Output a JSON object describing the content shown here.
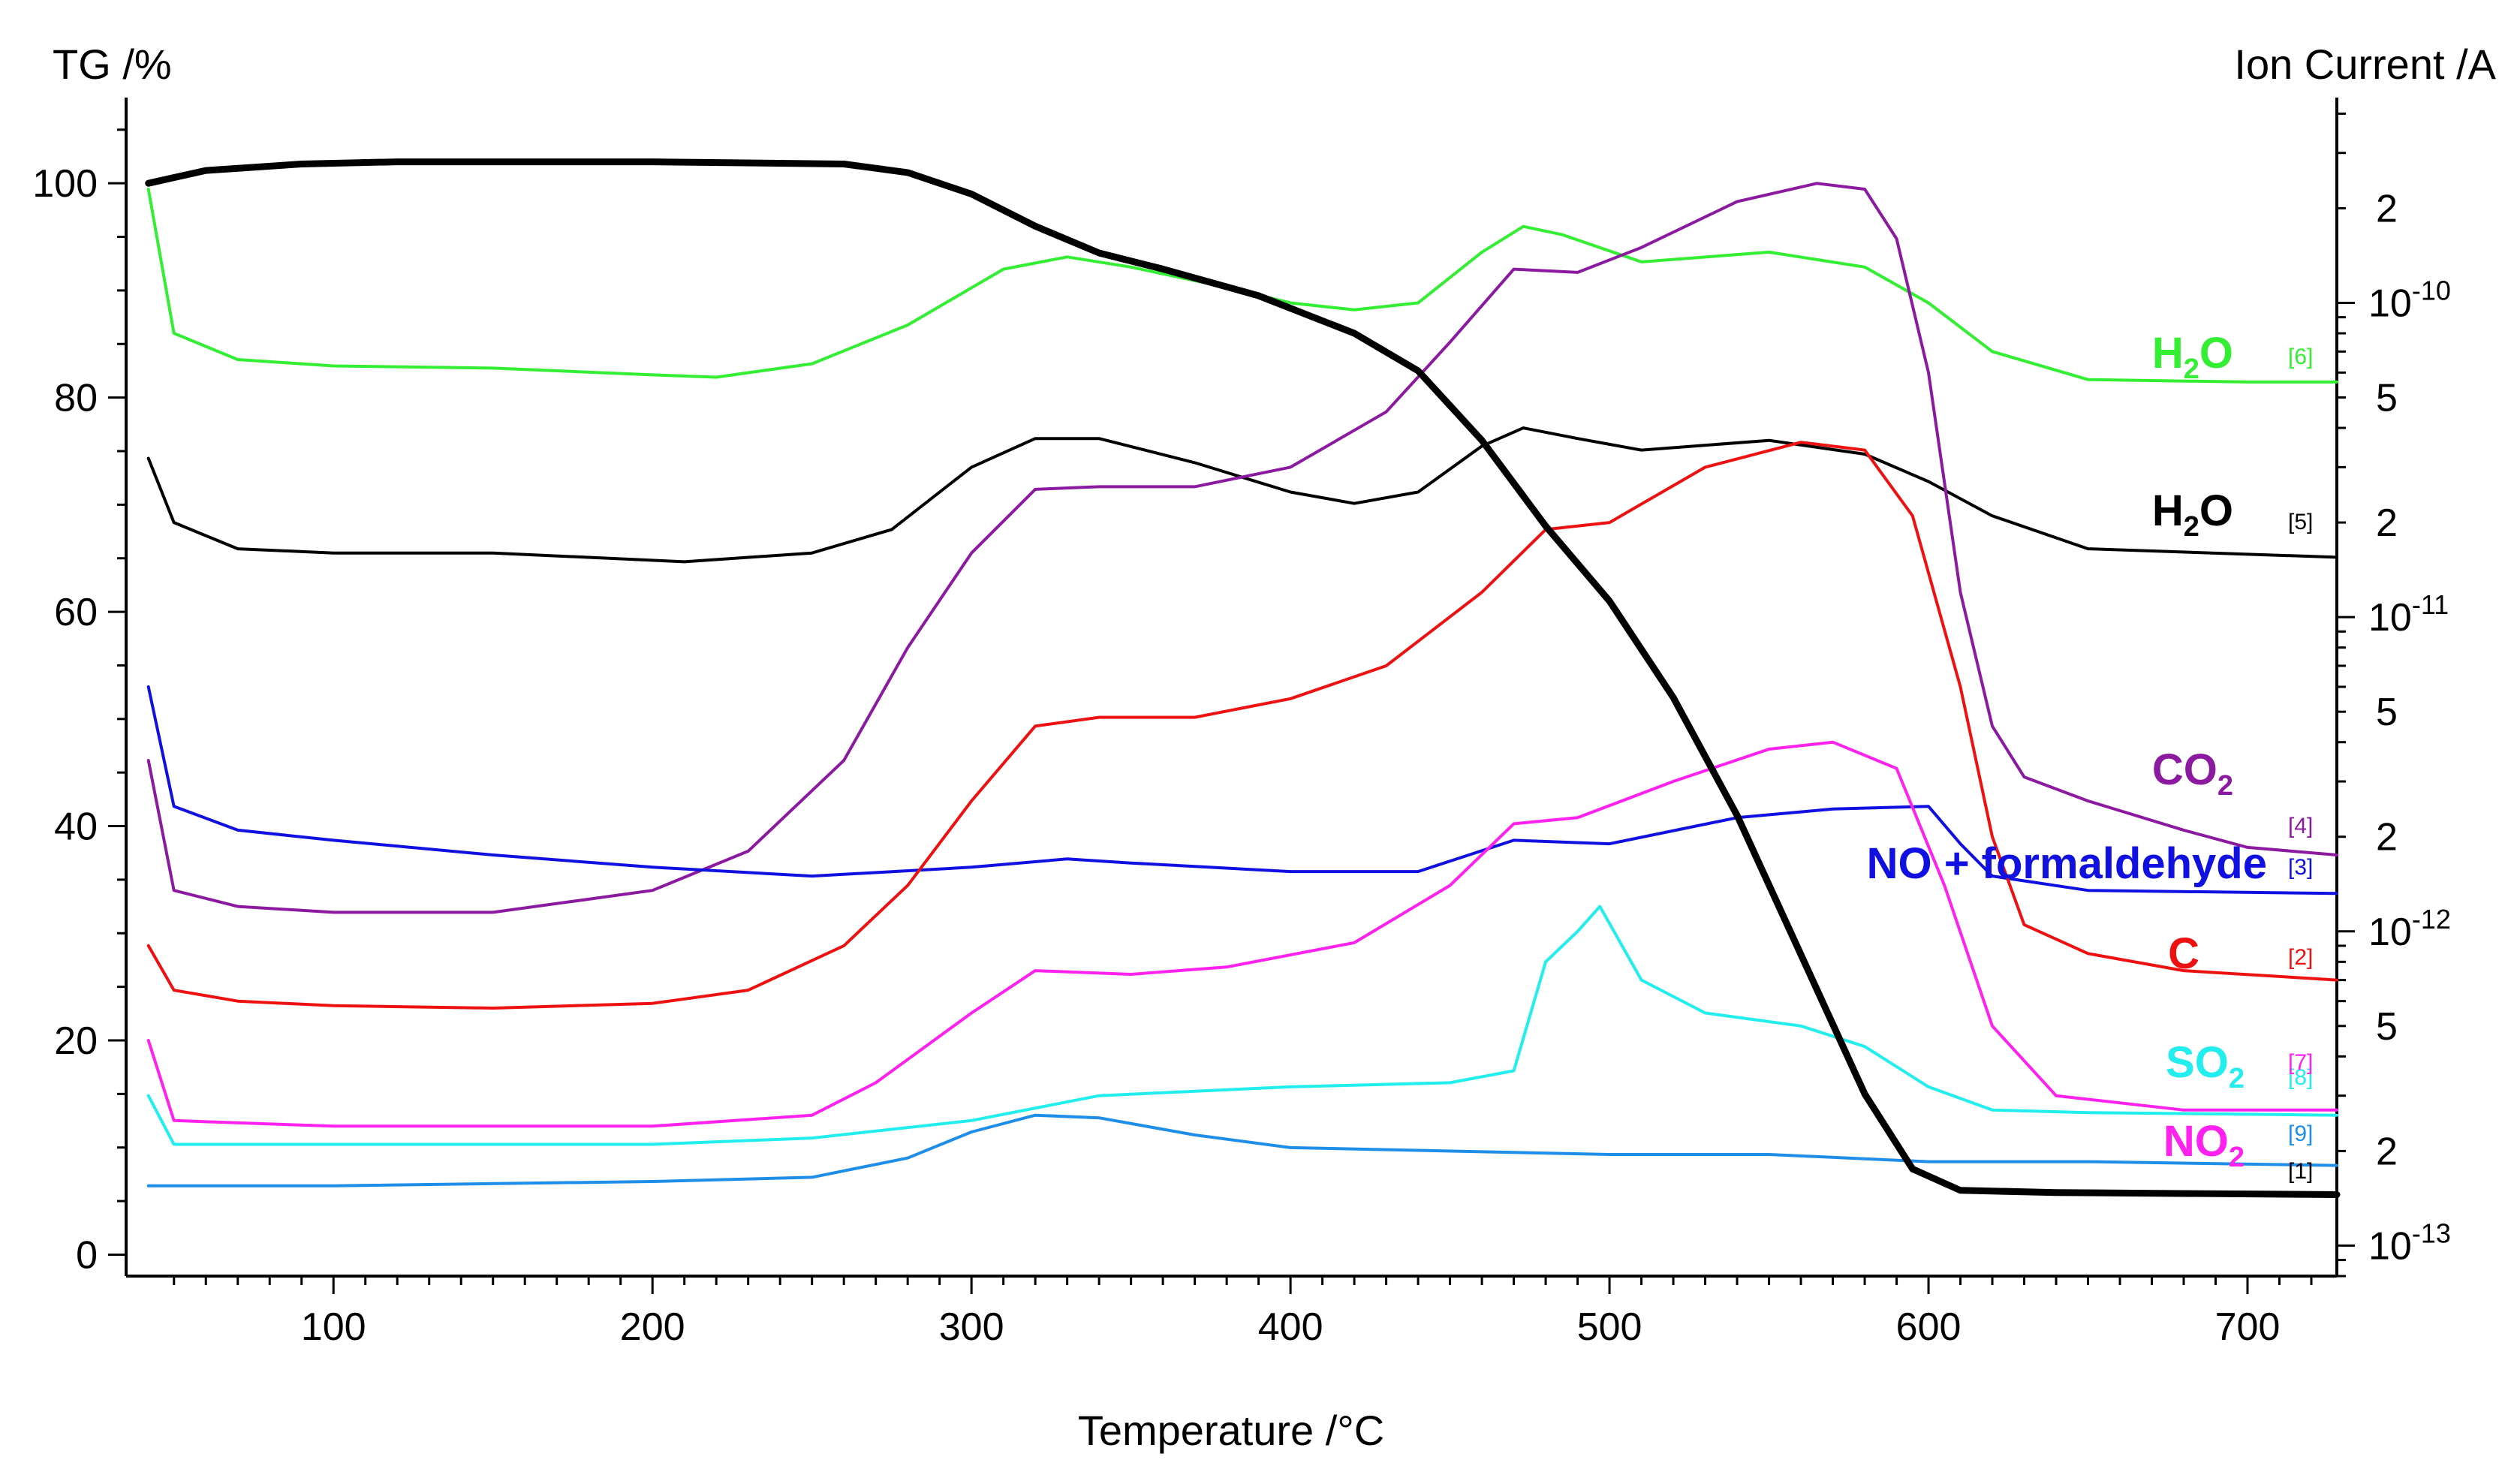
{
  "chart_data": {
    "type": "line",
    "title": "",
    "xlabel": "Temperature /°C",
    "ylabel_left": "TG /%",
    "ylabel_right": "Ion Current /A",
    "xlim": [
      35,
      728
    ],
    "ylim_left": [
      -2,
      108
    ],
    "right_axis": {
      "scale": "log",
      "ylim": [
        8e-14,
        4.5e-10
      ],
      "major_ticks": [
        {
          "value": 1e-13,
          "base": "10",
          "exp": "-13"
        },
        {
          "value": 1e-12,
          "base": "10",
          "exp": "-12"
        },
        {
          "value": 1e-11,
          "base": "10",
          "exp": "-11"
        },
        {
          "value": 1e-10,
          "base": "10",
          "exp": "-10"
        }
      ],
      "minor_labeled_ticks": [
        {
          "value": 2e-13,
          "label": "2"
        },
        {
          "value": 5e-13,
          "label": "5"
        },
        {
          "value": 2e-12,
          "label": "2"
        },
        {
          "value": 5e-12,
          "label": "5"
        },
        {
          "value": 2e-11,
          "label": "2"
        },
        {
          "value": 5e-11,
          "label": "5"
        },
        {
          "value": 2e-10,
          "label": "2"
        }
      ]
    },
    "x_ticks": [
      100,
      200,
      300,
      400,
      500,
      600,
      700
    ],
    "y_ticks_left": [
      0,
      20,
      40,
      60,
      80,
      100
    ],
    "series": [
      {
        "name": "TG",
        "axis": "left",
        "color": "#000000",
        "thick": true,
        "points": [
          [
            42,
            100
          ],
          [
            60,
            101.2
          ],
          [
            90,
            101.8
          ],
          [
            120,
            102
          ],
          [
            200,
            102
          ],
          [
            260,
            101.8
          ],
          [
            280,
            101
          ],
          [
            300,
            99
          ],
          [
            320,
            96
          ],
          [
            340,
            93.5
          ],
          [
            360,
            92
          ],
          [
            390,
            89.5
          ],
          [
            420,
            86
          ],
          [
            440,
            82.5
          ],
          [
            460,
            76
          ],
          [
            480,
            68
          ],
          [
            500,
            61
          ],
          [
            520,
            52
          ],
          [
            540,
            41
          ],
          [
            560,
            28
          ],
          [
            580,
            15
          ],
          [
            595,
            8
          ],
          [
            610,
            6
          ],
          [
            640,
            5.8
          ],
          [
            728,
            5.6
          ]
        ]
      },
      {
        "name": "H2O",
        "index": "[6]",
        "label_parts": [
          "H",
          "2",
          "O"
        ],
        "axis": "right",
        "color": "#33ee33",
        "points": [
          [
            42,
            2.3e-10
          ],
          [
            50,
            8e-11
          ],
          [
            70,
            6.6e-11
          ],
          [
            100,
            6.3e-11
          ],
          [
            150,
            6.2e-11
          ],
          [
            200,
            5.9e-11
          ],
          [
            220,
            5.8e-11
          ],
          [
            250,
            6.4e-11
          ],
          [
            280,
            8.5e-11
          ],
          [
            310,
            1.28e-10
          ],
          [
            330,
            1.4e-10
          ],
          [
            350,
            1.3e-10
          ],
          [
            380,
            1.12e-10
          ],
          [
            400,
            1e-10
          ],
          [
            420,
            9.5e-11
          ],
          [
            440,
            1e-10
          ],
          [
            460,
            1.45e-10
          ],
          [
            473,
            1.75e-10
          ],
          [
            485,
            1.65e-10
          ],
          [
            510,
            1.35e-10
          ],
          [
            550,
            1.45e-10
          ],
          [
            580,
            1.3e-10
          ],
          [
            600,
            1e-10
          ],
          [
            620,
            7e-11
          ],
          [
            650,
            5.7e-11
          ],
          [
            700,
            5.6e-11
          ],
          [
            728,
            5.6e-11
          ]
        ]
      },
      {
        "name": "H2O",
        "index": "[5]",
        "label_parts": [
          "H",
          "2",
          "O"
        ],
        "axis": "right",
        "color": "#000000",
        "points": [
          [
            42,
            3.2e-11
          ],
          [
            50,
            2e-11
          ],
          [
            70,
            1.65e-11
          ],
          [
            100,
            1.6e-11
          ],
          [
            150,
            1.6e-11
          ],
          [
            210,
            1.5e-11
          ],
          [
            250,
            1.6e-11
          ],
          [
            275,
            1.9e-11
          ],
          [
            300,
            3e-11
          ],
          [
            320,
            3.7e-11
          ],
          [
            340,
            3.7e-11
          ],
          [
            370,
            3.1e-11
          ],
          [
            400,
            2.5e-11
          ],
          [
            420,
            2.3e-11
          ],
          [
            440,
            2.5e-11
          ],
          [
            460,
            3.5e-11
          ],
          [
            473,
            4e-11
          ],
          [
            490,
            3.7e-11
          ],
          [
            510,
            3.4e-11
          ],
          [
            550,
            3.65e-11
          ],
          [
            580,
            3.3e-11
          ],
          [
            600,
            2.7e-11
          ],
          [
            620,
            2.1e-11
          ],
          [
            650,
            1.65e-11
          ],
          [
            728,
            1.55e-11
          ]
        ]
      },
      {
        "name": "CO2",
        "index": "[4]",
        "label_parts": [
          "CO",
          "2",
          ""
        ],
        "axis": "right",
        "color": "#8b1aa0",
        "points": [
          [
            42,
            3.5e-12
          ],
          [
            50,
            1.35e-12
          ],
          [
            70,
            1.2e-12
          ],
          [
            100,
            1.15e-12
          ],
          [
            150,
            1.15e-12
          ],
          [
            200,
            1.35e-12
          ],
          [
            230,
            1.8e-12
          ],
          [
            260,
            3.5e-12
          ],
          [
            280,
            8e-12
          ],
          [
            300,
            1.6e-11
          ],
          [
            320,
            2.55e-11
          ],
          [
            340,
            2.6e-11
          ],
          [
            370,
            2.6e-11
          ],
          [
            400,
            3e-11
          ],
          [
            430,
            4.5e-11
          ],
          [
            450,
            7.5e-11
          ],
          [
            470,
            1.28e-10
          ],
          [
            490,
            1.25e-10
          ],
          [
            510,
            1.5e-10
          ],
          [
            540,
            2.1e-10
          ],
          [
            565,
            2.4e-10
          ],
          [
            580,
            2.3e-10
          ],
          [
            590,
            1.6e-10
          ],
          [
            600,
            6e-11
          ],
          [
            610,
            1.2e-11
          ],
          [
            620,
            4.5e-12
          ],
          [
            630,
            3.1e-12
          ],
          [
            650,
            2.6e-12
          ],
          [
            680,
            2.1e-12
          ],
          [
            700,
            1.85e-12
          ],
          [
            728,
            1.75e-12
          ]
        ]
      },
      {
        "name": "NO + formaldehyde",
        "index": "[3]",
        "label_parts": [
          "NO + formaldehyde",
          "",
          ""
        ],
        "axis": "right",
        "color": "#1010e0",
        "points": [
          [
            42,
            6e-12
          ],
          [
            50,
            2.5e-12
          ],
          [
            70,
            2.1e-12
          ],
          [
            100,
            1.95e-12
          ],
          [
            150,
            1.75e-12
          ],
          [
            200,
            1.6e-12
          ],
          [
            250,
            1.5e-12
          ],
          [
            300,
            1.6e-12
          ],
          [
            330,
            1.7e-12
          ],
          [
            350,
            1.65e-12
          ],
          [
            400,
            1.55e-12
          ],
          [
            440,
            1.55e-12
          ],
          [
            470,
            1.95e-12
          ],
          [
            500,
            1.9e-12
          ],
          [
            540,
            2.3e-12
          ],
          [
            570,
            2.45e-12
          ],
          [
            600,
            2.5e-12
          ],
          [
            610,
            1.9e-12
          ],
          [
            620,
            1.5e-12
          ],
          [
            650,
            1.35e-12
          ],
          [
            728,
            1.32e-12
          ]
        ]
      },
      {
        "name": "C",
        "index": "[2]",
        "label_parts": [
          "C",
          "",
          ""
        ],
        "axis": "right",
        "color": "#ee1111",
        "points": [
          [
            42,
            9e-13
          ],
          [
            50,
            6.5e-13
          ],
          [
            70,
            6e-13
          ],
          [
            100,
            5.8e-13
          ],
          [
            150,
            5.7e-13
          ],
          [
            200,
            5.9e-13
          ],
          [
            230,
            6.5e-13
          ],
          [
            260,
            9e-13
          ],
          [
            280,
            1.4e-12
          ],
          [
            300,
            2.6e-12
          ],
          [
            320,
            4.5e-12
          ],
          [
            340,
            4.8e-12
          ],
          [
            370,
            4.8e-12
          ],
          [
            400,
            5.5e-12
          ],
          [
            430,
            7e-12
          ],
          [
            460,
            1.2e-11
          ],
          [
            480,
            1.9e-11
          ],
          [
            500,
            2e-11
          ],
          [
            530,
            3e-11
          ],
          [
            560,
            3.6e-11
          ],
          [
            580,
            3.4e-11
          ],
          [
            595,
            2.1e-11
          ],
          [
            610,
            6e-12
          ],
          [
            620,
            2e-12
          ],
          [
            630,
            1.05e-12
          ],
          [
            650,
            8.5e-13
          ],
          [
            680,
            7.5e-13
          ],
          [
            728,
            7e-13
          ]
        ]
      },
      {
        "name": "SO2",
        "index": "[8]",
        "label_parts": [
          "SO",
          "2",
          ""
        ],
        "axis": "right",
        "color": "#22eeee",
        "points": [
          [
            42,
            3e-13
          ],
          [
            50,
            2.1e-13
          ],
          [
            100,
            2.1e-13
          ],
          [
            200,
            2.1e-13
          ],
          [
            250,
            2.2e-13
          ],
          [
            300,
            2.5e-13
          ],
          [
            340,
            3e-13
          ],
          [
            400,
            3.2e-13
          ],
          [
            450,
            3.3e-13
          ],
          [
            470,
            3.6e-13
          ],
          [
            480,
            8e-13
          ],
          [
            490,
            1e-12
          ],
          [
            497,
            1.2e-12
          ],
          [
            510,
            7e-13
          ],
          [
            530,
            5.5e-13
          ],
          [
            560,
            5e-13
          ],
          [
            580,
            4.3e-13
          ],
          [
            600,
            3.2e-13
          ],
          [
            620,
            2.7e-13
          ],
          [
            650,
            2.65e-13
          ],
          [
            728,
            2.6e-13
          ]
        ]
      },
      {
        "name": "NO2",
        "index": "[7]",
        "label_parts": [
          "NO",
          "2",
          ""
        ],
        "axis": "right",
        "color": "#ff22ee",
        "points": [
          [
            42,
            4.5e-13
          ],
          [
            50,
            2.5e-13
          ],
          [
            100,
            2.4e-13
          ],
          [
            200,
            2.4e-13
          ],
          [
            250,
            2.6e-13
          ],
          [
            270,
            3.3e-13
          ],
          [
            300,
            5.5e-13
          ],
          [
            320,
            7.5e-13
          ],
          [
            350,
            7.3e-13
          ],
          [
            380,
            7.7e-13
          ],
          [
            420,
            9.2e-13
          ],
          [
            450,
            1.4e-12
          ],
          [
            470,
            2.2e-12
          ],
          [
            490,
            2.3e-12
          ],
          [
            520,
            3e-12
          ],
          [
            550,
            3.8e-12
          ],
          [
            570,
            4e-12
          ],
          [
            590,
            3.3e-12
          ],
          [
            605,
            1.4e-12
          ],
          [
            620,
            5e-13
          ],
          [
            640,
            3e-13
          ],
          [
            680,
            2.7e-13
          ],
          [
            728,
            2.7e-13
          ]
        ]
      },
      {
        "name": "",
        "index": "[9]",
        "label_parts": [
          "",
          "",
          ""
        ],
        "axis": "right",
        "color": "#1e8ee8",
        "points": [
          [
            42,
            1.55e-13
          ],
          [
            100,
            1.55e-13
          ],
          [
            200,
            1.6e-13
          ],
          [
            250,
            1.65e-13
          ],
          [
            280,
            1.9e-13
          ],
          [
            300,
            2.3e-13
          ],
          [
            320,
            2.6e-13
          ],
          [
            340,
            2.55e-13
          ],
          [
            370,
            2.25e-13
          ],
          [
            400,
            2.05e-13
          ],
          [
            500,
            1.95e-13
          ],
          [
            550,
            1.95e-13
          ],
          [
            600,
            1.85e-13
          ],
          [
            650,
            1.85e-13
          ],
          [
            728,
            1.8e-13
          ]
        ]
      },
      {
        "name": "",
        "index": "[1]",
        "label_parts": [
          "",
          "",
          ""
        ],
        "axis": "right",
        "color": "#000000",
        "points": []
      }
    ]
  }
}
